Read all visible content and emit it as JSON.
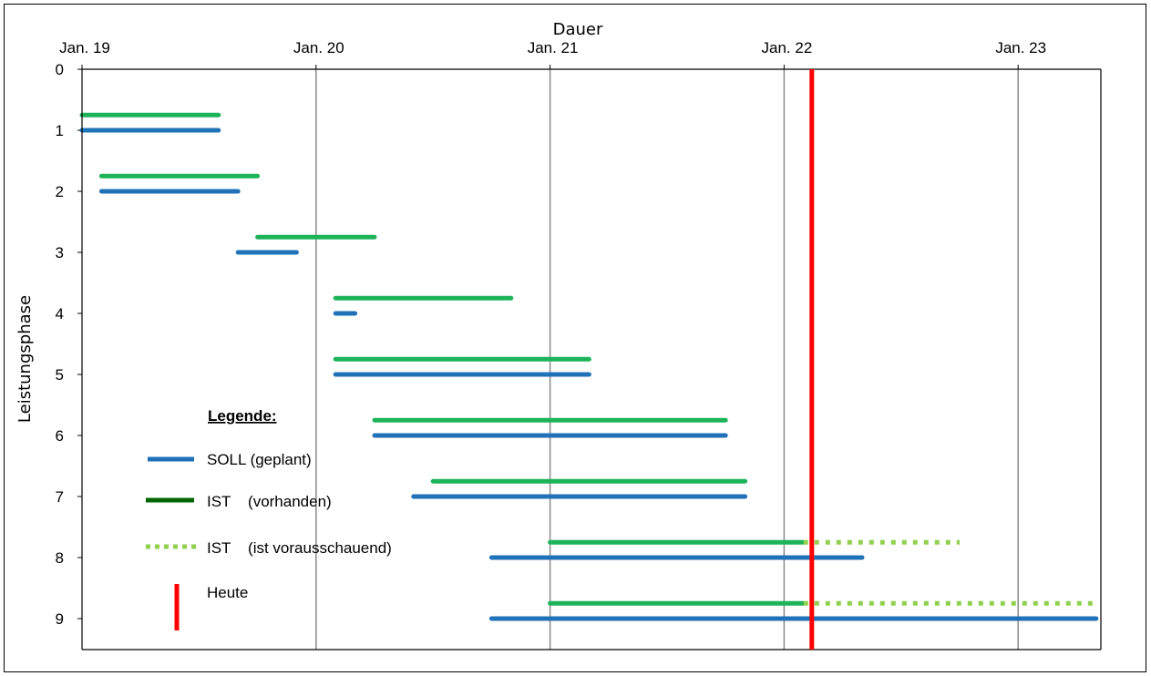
{
  "chart_data": {
    "type": "gantt",
    "title": "Dauer",
    "xlabel": "Dauer",
    "ylabel": "Leistungsphase",
    "x_ticks": [
      "Jan. 19",
      "Jan. 20",
      "Jan. 21",
      "Jan. 22",
      "Jan. 23"
    ],
    "xlim": [
      "2019-01",
      "2023-05"
    ],
    "y_ticks": [
      "0",
      "1",
      "2",
      "3",
      "4",
      "5",
      "6",
      "7",
      "8",
      "9"
    ],
    "ylim": [
      0,
      9.5
    ],
    "y_inverted": true,
    "today": "2022-02",
    "colors": {
      "soll": "#1f72b8",
      "ist": "#1db35a",
      "ist_forecast": "#8fd14f",
      "today": "#ff0000"
    },
    "soll": [
      {
        "phase": 1,
        "start": "2019-01",
        "end": "2019-08"
      },
      {
        "phase": 2,
        "start": "2019-02",
        "end": "2019-09"
      },
      {
        "phase": 3,
        "start": "2019-09",
        "end": "2019-12"
      },
      {
        "phase": 4,
        "start": "2020-02",
        "end": "2020-03"
      },
      {
        "phase": 5,
        "start": "2020-02",
        "end": "2021-03"
      },
      {
        "phase": 6,
        "start": "2020-04",
        "end": "2021-10"
      },
      {
        "phase": 7,
        "start": "2020-06",
        "end": "2021-11"
      },
      {
        "phase": 8,
        "start": "2020-10",
        "end": "2022-05"
      },
      {
        "phase": 9,
        "start": "2020-10",
        "end": "2023-05"
      }
    ],
    "ist": [
      {
        "phase": 0.75,
        "start": "2019-01",
        "end": "2019-08"
      },
      {
        "phase": 1.75,
        "start": "2019-02",
        "end": "2019-10"
      },
      {
        "phase": 2.75,
        "start": "2019-10",
        "end": "2020-04"
      },
      {
        "phase": 3.75,
        "start": "2020-02",
        "end": "2020-11"
      },
      {
        "phase": 4.75,
        "start": "2020-02",
        "end": "2021-03"
      },
      {
        "phase": 5.75,
        "start": "2020-04",
        "end": "2021-10"
      },
      {
        "phase": 6.75,
        "start": "2020-07",
        "end": "2021-11"
      },
      {
        "phase": 7.75,
        "start": "2021-01",
        "end": "2022-02"
      },
      {
        "phase": 8.75,
        "start": "2021-01",
        "end": "2022-02"
      }
    ],
    "ist_forecast": [
      {
        "phase": 7.75,
        "start": "2022-02",
        "end": "2022-10"
      },
      {
        "phase": 8.75,
        "start": "2022-02",
        "end": "2023-05"
      }
    ]
  },
  "legend": {
    "title": "Legende:",
    "items": [
      {
        "key": "soll",
        "label": "SOLL (geplant)"
      },
      {
        "key": "ist",
        "label": "IST    (vorhanden)"
      },
      {
        "key": "ist_forecast",
        "label": "IST    (ist vorausschauend)"
      },
      {
        "key": "today",
        "label": "Heute"
      }
    ]
  }
}
